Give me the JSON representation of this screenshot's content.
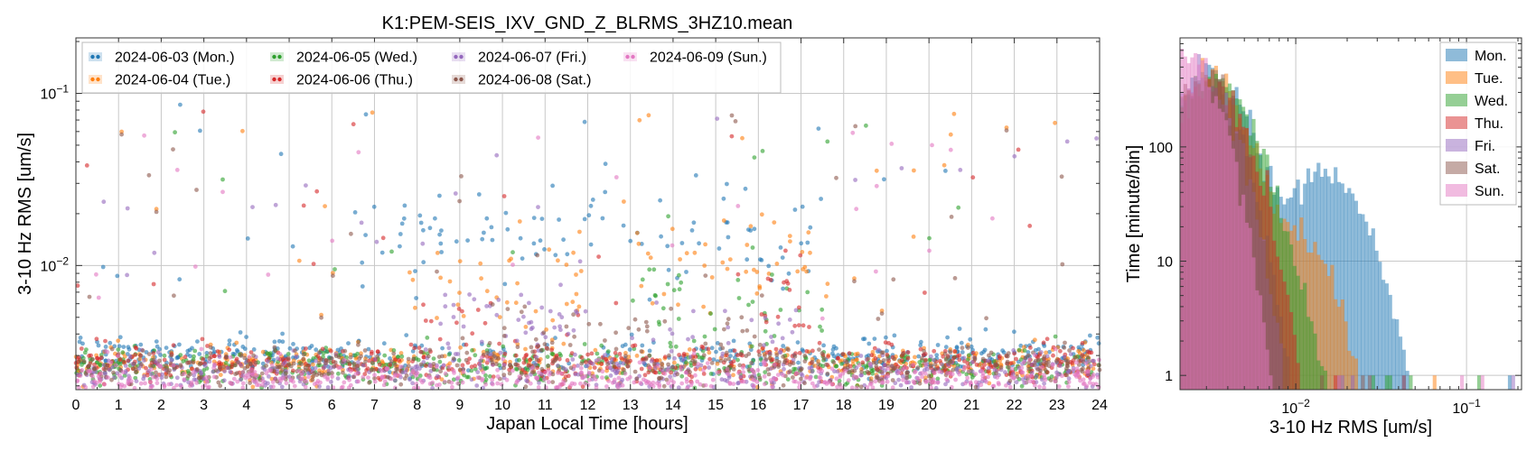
{
  "chart_data": [
    {
      "type": "scatter",
      "title": "K1:PEM-SEIS_IXV_GND_Z_BLRMS_3HZ10.mean",
      "xlabel": "Japan Local Time [hours]",
      "ylabel": "3-10 Hz RMS [um/s]",
      "xlim": [
        0,
        24
      ],
      "ylim": [
        0.0019,
        0.21
      ],
      "yscale": "log",
      "x_ticks": [
        "0",
        "1",
        "2",
        "3",
        "4",
        "5",
        "6",
        "7",
        "8",
        "9",
        "10",
        "11",
        "12",
        "13",
        "14",
        "15",
        "16",
        "17",
        "18",
        "19",
        "20",
        "21",
        "22",
        "23",
        "24"
      ],
      "y_ticks": [
        {
          "value": 0.01,
          "base": "10",
          "exp": "−2"
        },
        {
          "value": 0.1,
          "base": "10",
          "exp": "−1"
        }
      ],
      "grid": true,
      "legend_position": "top-left",
      "series": [
        {
          "name": "2024-06-03 (Mon.)",
          "color": "#1f77b4",
          "base": 0.003,
          "active": [
            [
              6.5,
              17.5,
              0.015
            ]
          ]
        },
        {
          "name": "2024-06-04 (Tue.)",
          "color": "#ff7f0e",
          "base": 0.0027,
          "active": [
            [
              7.8,
              12,
              0.008
            ],
            [
              13,
              17.8,
              0.011
            ]
          ]
        },
        {
          "name": "2024-06-05 (Wed.)",
          "color": "#2ca02c",
          "base": 0.0026,
          "active": [
            [
              13,
              17.5,
              0.006
            ]
          ]
        },
        {
          "name": "2024-06-06 (Thu.)",
          "color": "#d62728",
          "base": 0.0027,
          "active": [
            [
              8,
              10,
              0.0045
            ],
            [
              16,
              17.2,
              0.0065
            ]
          ]
        },
        {
          "name": "2024-06-07 (Fri.)",
          "color": "#9467bd",
          "base": 0.0024,
          "active": [
            [
              8.5,
              12,
              0.0045
            ],
            [
              13,
              17,
              0.0035
            ]
          ]
        },
        {
          "name": "2024-06-08 (Sat.)",
          "color": "#8c564b",
          "base": 0.0026,
          "active": [
            [
              9,
              16,
              0.0035
            ]
          ]
        },
        {
          "name": "2024-06-09 (Sun.)",
          "color": "#e377c2",
          "base": 0.0022,
          "active": []
        }
      ]
    },
    {
      "type": "histogram",
      "xlabel": "3-10 Hz RMS [um/s]",
      "ylabel": "Time [minute/bin]",
      "xlim": [
        0.0021,
        0.21
      ],
      "ylim": [
        0.75,
        900
      ],
      "xscale": "log",
      "yscale": "log",
      "x_ticks": [
        {
          "value": 0.01,
          "base": "10",
          "exp": "−2"
        },
        {
          "value": 0.1,
          "base": "10",
          "exp": "−1"
        }
      ],
      "y_ticks": [
        {
          "value": 1,
          "label": "1"
        },
        {
          "value": 10,
          "label": "10"
        },
        {
          "value": 100,
          "label": "100"
        }
      ],
      "grid": true,
      "legend_position": "top-right",
      "series": [
        {
          "name": "Mon.",
          "color": "#1f77b4",
          "peak1": 420,
          "center1": 0.0032,
          "width1": 0.16,
          "peak2": 55,
          "center2": 0.015,
          "width2": 0.17
        },
        {
          "name": "Tue.",
          "color": "#ff7f0e",
          "peak1": 450,
          "center1": 0.003,
          "width1": 0.15,
          "peak2": 20,
          "center2": 0.0085,
          "width2": 0.18
        },
        {
          "name": "Wed.",
          "color": "#2ca02c",
          "peak1": 380,
          "center1": 0.0032,
          "width1": 0.17,
          "peak2": 8,
          "center2": 0.0065,
          "width2": 0.16
        },
        {
          "name": "Thu.",
          "color": "#d62728",
          "peak1": 360,
          "center1": 0.0031,
          "width1": 0.15,
          "peak2": 6,
          "center2": 0.0055,
          "width2": 0.12
        },
        {
          "name": "Fri.",
          "color": "#9467bd",
          "peak1": 420,
          "center1": 0.0027,
          "width1": 0.14,
          "peak2": 5,
          "center2": 0.0045,
          "width2": 0.12
        },
        {
          "name": "Sat.",
          "color": "#8c564b",
          "peak1": 380,
          "center1": 0.0029,
          "width1": 0.14,
          "peak2": 6,
          "center2": 0.0045,
          "width2": 0.13
        },
        {
          "name": "Sun.",
          "color": "#e377c2",
          "peak1": 620,
          "center1": 0.0024,
          "width1": 0.13,
          "peak2": 0,
          "center2": 0.003,
          "width2": 0.1
        }
      ]
    }
  ]
}
